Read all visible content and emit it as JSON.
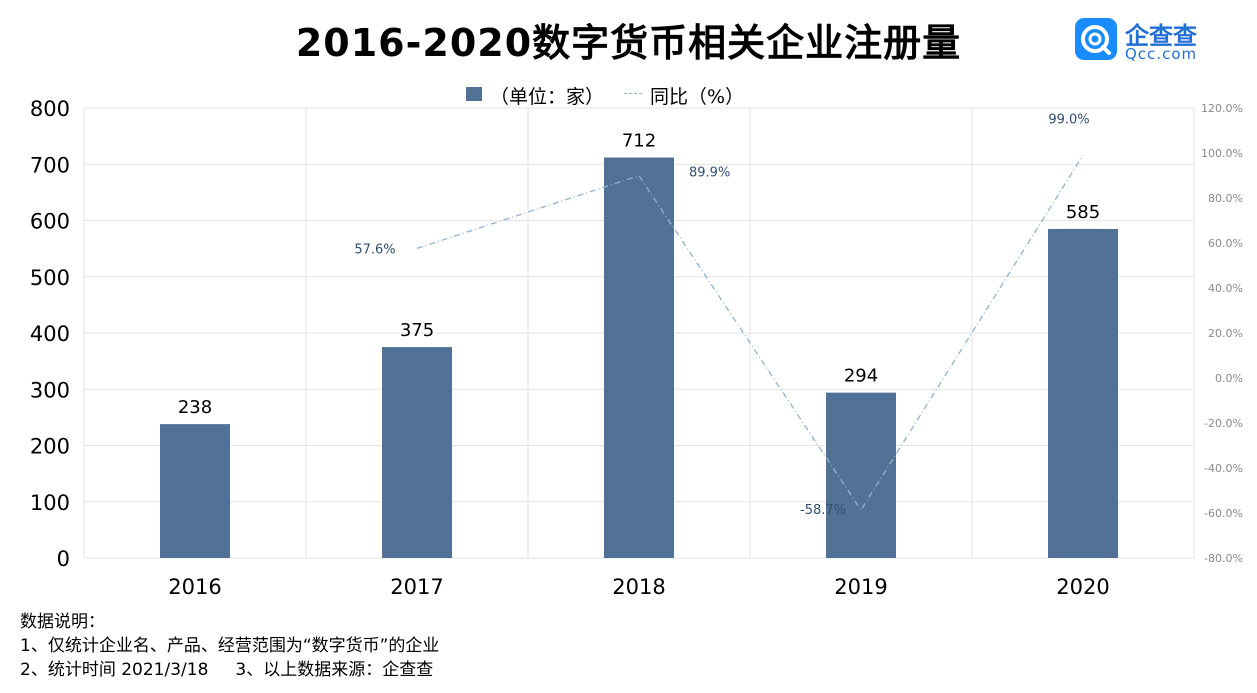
{
  "title": "2016-2020数字货币相关企业注册量",
  "logo": {
    "name": "企查查",
    "sub": "Qcc.com",
    "icon": "qcc-logo-icon"
  },
  "legend": {
    "bar_label": "（单位：家）",
    "line_label": "同比（%）"
  },
  "notes": {
    "heading": "数据说明：",
    "line1": "1、仅统计企业名、产品、经营范围为“数字货币”的企业",
    "line2": "2、统计时间 2021/3/18     3、以上数据来源：企查查"
  },
  "colors": {
    "bar": "#527196",
    "line": "#8fb3cf",
    "grid": "#e3e3e3",
    "line_label": "#2f4f6f"
  },
  "chart_data": {
    "type": "bar",
    "categories": [
      "2016",
      "2017",
      "2018",
      "2019",
      "2020"
    ],
    "series": [
      {
        "name": "（单位：家）",
        "type": "bar",
        "axis": "left",
        "values": [
          238,
          375,
          712,
          294,
          585
        ]
      },
      {
        "name": "同比（%）",
        "type": "line",
        "axis": "right",
        "values": [
          null,
          57.6,
          89.9,
          -58.7,
          99.0
        ]
      }
    ],
    "data_labels": {
      "bar": [
        "238",
        "375",
        "712",
        "294",
        "585"
      ],
      "line": [
        null,
        "57.6%",
        "89.9%",
        "-58.7%",
        "99.0%"
      ]
    },
    "y_left": {
      "min": 0,
      "max": 800,
      "ticks": [
        "0",
        "100",
        "200",
        "300",
        "400",
        "500",
        "600",
        "700",
        "800"
      ]
    },
    "y_right": {
      "min": -80,
      "max": 120,
      "ticks": [
        "-80.0%",
        "-60.0%",
        "-40.0%",
        "-20.0%",
        "0.0%",
        "20.0%",
        "40.0%",
        "60.0%",
        "80.0%",
        "100.0%",
        "120.0%"
      ]
    },
    "grid": true,
    "legend_position": "top-center"
  }
}
